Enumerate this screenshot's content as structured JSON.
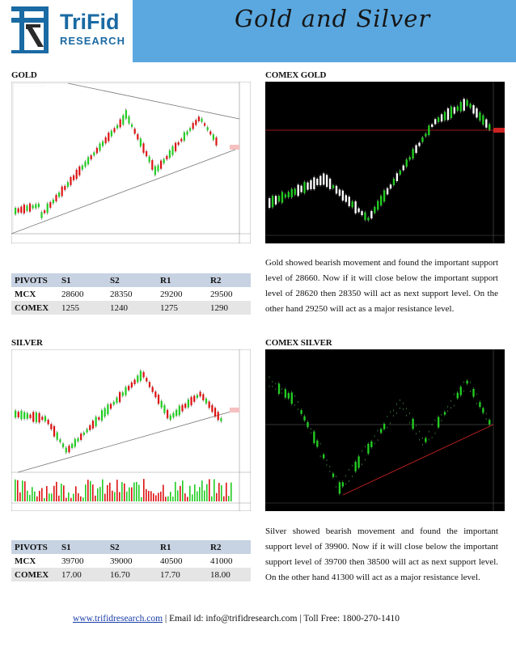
{
  "header": {
    "logo_line1": "TriFid",
    "logo_line2": "RESEARCH",
    "title": "Gold and Silver",
    "logo_color": "#1a6aa3",
    "band_color": "#5ba8e0"
  },
  "gold": {
    "label": "GOLD",
    "comex_label": "COMEX GOLD",
    "table": {
      "headers": [
        "PIVOTS",
        "S1",
        "S2",
        "R1",
        "R2"
      ],
      "rows": [
        {
          "name": "MCX",
          "values": [
            "28600",
            "28350",
            "29200",
            "29500"
          ]
        },
        {
          "name": "COMEX",
          "values": [
            "1255",
            "1240",
            "1275",
            "1290"
          ]
        }
      ]
    },
    "commentary": "Gold showed bearish movement and found the important support level of 28660. Now if it will close below the important support level of 28620 then 28350 will act as next support level. On the other hand 29250 will act as a major resistance level."
  },
  "silver": {
    "label": "SILVER",
    "comex_label": "COMEX SILVER",
    "table": {
      "headers": [
        "PIVOTS",
        "S1",
        "S2",
        "R1",
        "R2"
      ],
      "rows": [
        {
          "name": "MCX",
          "values": [
            "39700",
            "39000",
            "40500",
            "41000"
          ]
        },
        {
          "name": "COMEX",
          "values": [
            "17.00",
            "16.70",
            "17.70",
            "18.00"
          ]
        }
      ]
    },
    "commentary": "Silver showed bearish movement and found the important support level of 39900. Now if it will close below the important support level of 39700 then 38500 will act as next support level. On the other hand 41300 will act as a major resistance level."
  },
  "footer": {
    "website": "www.trifidresearch.com",
    "contact": " | Email id: info@trifidresearch.com | Toll Free: 1800-270-1410"
  },
  "colors": {
    "table_header": "#c7d2e2",
    "table_alt_row": "#e5e5e5",
    "candle_up": "#22cc22",
    "candle_down": "#dd1111",
    "comex_bg": "#000000"
  }
}
